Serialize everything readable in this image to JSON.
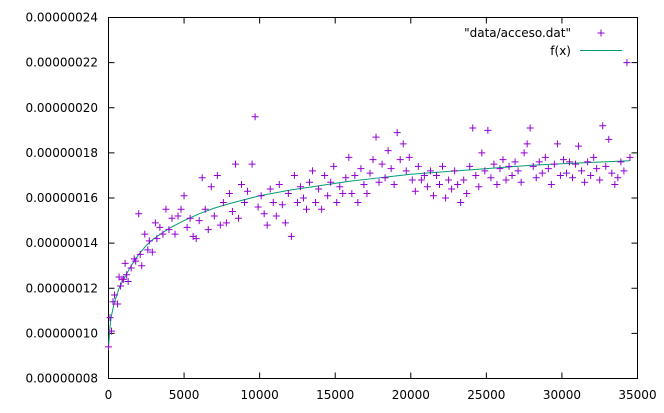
{
  "chart_data": {
    "type": "scatter",
    "title": "",
    "xlabel": "",
    "ylabel": "",
    "xlim": [
      0,
      35000
    ],
    "ylim": [
      8e-08,
      2.4e-07
    ],
    "xticks": [
      0,
      5000,
      10000,
      15000,
      20000,
      25000,
      30000,
      35000
    ],
    "xtick_labels": [
      "0",
      "5000",
      "10000",
      "15000",
      "20000",
      "25000",
      "30000",
      "35000"
    ],
    "yticks": [
      8e-08,
      1e-07,
      1.2e-07,
      1.4e-07,
      1.6e-07,
      1.8e-07,
      2e-07,
      2.2e-07,
      2.4e-07
    ],
    "ytick_labels": [
      "0.00000008",
      "0.00000010",
      "0.00000012",
      "0.00000014",
      "0.00000016",
      "0.00000018",
      "0.00000020",
      "0.00000022",
      "0.00000024"
    ],
    "legend_position": "top-right",
    "grid": false,
    "series": [
      {
        "name": "\"data/acceso.dat\"",
        "kind": "points",
        "marker": "+",
        "color": "#9400d3",
        "points": [
          [
            0,
            9.4e-08
          ],
          [
            100,
            1.07e-07
          ],
          [
            200,
            1.01e-07
          ],
          [
            300,
            1.14e-07
          ],
          [
            400,
            1.17e-07
          ],
          [
            600,
            1.13e-07
          ],
          [
            700,
            1.25e-07
          ],
          [
            800,
            1.21e-07
          ],
          [
            900,
            1.24e-07
          ],
          [
            1000,
            1.24e-07
          ],
          [
            1100,
            1.31e-07
          ],
          [
            1200,
            1.26e-07
          ],
          [
            1300,
            1.23e-07
          ],
          [
            1500,
            1.29e-07
          ],
          [
            1700,
            1.33e-07
          ],
          [
            1800,
            1.32e-07
          ],
          [
            2000,
            1.53e-07
          ],
          [
            2100,
            1.35e-07
          ],
          [
            2200,
            1.3e-07
          ],
          [
            2400,
            1.44e-07
          ],
          [
            2600,
            1.37e-07
          ],
          [
            2700,
            1.41e-07
          ],
          [
            2900,
            1.36e-07
          ],
          [
            3100,
            1.49e-07
          ],
          [
            3200,
            1.42e-07
          ],
          [
            3400,
            1.47e-07
          ],
          [
            3600,
            1.44e-07
          ],
          [
            3800,
            1.55e-07
          ],
          [
            4000,
            1.46e-07
          ],
          [
            4200,
            1.51e-07
          ],
          [
            4400,
            1.44e-07
          ],
          [
            4600,
            1.52e-07
          ],
          [
            4800,
            1.55e-07
          ],
          [
            5000,
            1.61e-07
          ],
          [
            5200,
            1.47e-07
          ],
          [
            5400,
            1.51e-07
          ],
          [
            5600,
            1.43e-07
          ],
          [
            5800,
            1.42e-07
          ],
          [
            6000,
            1.5e-07
          ],
          [
            6200,
            1.69e-07
          ],
          [
            6400,
            1.55e-07
          ],
          [
            6600,
            1.46e-07
          ],
          [
            6800,
            1.65e-07
          ],
          [
            7000,
            1.52e-07
          ],
          [
            7200,
            1.7e-07
          ],
          [
            7400,
            1.48e-07
          ],
          [
            7600,
            1.58e-07
          ],
          [
            7800,
            1.49e-07
          ],
          [
            8000,
            1.62e-07
          ],
          [
            8200,
            1.54e-07
          ],
          [
            8400,
            1.75e-07
          ],
          [
            8600,
            1.51e-07
          ],
          [
            8800,
            1.66e-07
          ],
          [
            9000,
            1.58e-07
          ],
          [
            9200,
            1.63e-07
          ],
          [
            9500,
            1.75e-07
          ],
          [
            9700,
            1.96e-07
          ],
          [
            9900,
            1.56e-07
          ],
          [
            10100,
            1.61e-07
          ],
          [
            10300,
            1.53e-07
          ],
          [
            10500,
            1.48e-07
          ],
          [
            10700,
            1.64e-07
          ],
          [
            10900,
            1.58e-07
          ],
          [
            11100,
            1.52e-07
          ],
          [
            11300,
            1.66e-07
          ],
          [
            11500,
            1.57e-07
          ],
          [
            11700,
            1.49e-07
          ],
          [
            11900,
            1.62e-07
          ],
          [
            12100,
            1.43e-07
          ],
          [
            12300,
            1.7e-07
          ],
          [
            12500,
            1.58e-07
          ],
          [
            12700,
            1.65e-07
          ],
          [
            12900,
            1.6e-07
          ],
          [
            13100,
            1.55e-07
          ],
          [
            13300,
            1.67e-07
          ],
          [
            13500,
            1.72e-07
          ],
          [
            13700,
            1.58e-07
          ],
          [
            13900,
            1.64e-07
          ],
          [
            14100,
            1.55e-07
          ],
          [
            14300,
            1.7e-07
          ],
          [
            14500,
            1.61e-07
          ],
          [
            14700,
            1.67e-07
          ],
          [
            14900,
            1.74e-07
          ],
          [
            15100,
            1.58e-07
          ],
          [
            15300,
            1.65e-07
          ],
          [
            15500,
            1.62e-07
          ],
          [
            15700,
            1.69e-07
          ],
          [
            15900,
            1.78e-07
          ],
          [
            16100,
            1.62e-07
          ],
          [
            16300,
            1.7e-07
          ],
          [
            16500,
            1.58e-07
          ],
          [
            16700,
            1.73e-07
          ],
          [
            16900,
            1.66e-07
          ],
          [
            17100,
            1.62e-07
          ],
          [
            17300,
            1.71e-07
          ],
          [
            17500,
            1.77e-07
          ],
          [
            17700,
            1.87e-07
          ],
          [
            17900,
            1.67e-07
          ],
          [
            18100,
            1.75e-07
          ],
          [
            18300,
            1.69e-07
          ],
          [
            18500,
            1.81e-07
          ],
          [
            18700,
            1.73e-07
          ],
          [
            18900,
            1.66e-07
          ],
          [
            19100,
            1.89e-07
          ],
          [
            19300,
            1.77e-07
          ],
          [
            19500,
            1.84e-07
          ],
          [
            19700,
            1.72e-07
          ],
          [
            19900,
            1.78e-07
          ],
          [
            20100,
            1.68e-07
          ],
          [
            20300,
            1.63e-07
          ],
          [
            20500,
            1.74e-07
          ],
          [
            20700,
            1.68e-07
          ],
          [
            20900,
            1.7e-07
          ],
          [
            21100,
            1.65e-07
          ],
          [
            21300,
            1.72e-07
          ],
          [
            21500,
            1.61e-07
          ],
          [
            21700,
            1.7e-07
          ],
          [
            21900,
            1.66e-07
          ],
          [
            22100,
            1.74e-07
          ],
          [
            22300,
            1.6e-07
          ],
          [
            22500,
            1.68e-07
          ],
          [
            22700,
            1.64e-07
          ],
          [
            22900,
            1.72e-07
          ],
          [
            23100,
            1.66e-07
          ],
          [
            23300,
            1.58e-07
          ],
          [
            23500,
            1.68e-07
          ],
          [
            23700,
            1.62e-07
          ],
          [
            23900,
            1.74e-07
          ],
          [
            24100,
            1.91e-07
          ],
          [
            24300,
            1.7e-07
          ],
          [
            24500,
            1.65e-07
          ],
          [
            24700,
            1.8e-07
          ],
          [
            24900,
            1.72e-07
          ],
          [
            25100,
            1.9e-07
          ],
          [
            25300,
            1.69e-07
          ],
          [
            25500,
            1.75e-07
          ],
          [
            25700,
            1.66e-07
          ],
          [
            25900,
            1.73e-07
          ],
          [
            26100,
            1.77e-07
          ],
          [
            26300,
            1.68e-07
          ],
          [
            26500,
            1.74e-07
          ],
          [
            26700,
            1.7e-07
          ],
          [
            26900,
            1.76e-07
          ],
          [
            27100,
            1.72e-07
          ],
          [
            27300,
            1.67e-07
          ],
          [
            27500,
            1.8e-07
          ],
          [
            27700,
            1.84e-07
          ],
          [
            27900,
            1.91e-07
          ],
          [
            28100,
            1.74e-07
          ],
          [
            28300,
            1.69e-07
          ],
          [
            28500,
            1.76e-07
          ],
          [
            28700,
            1.71e-07
          ],
          [
            28900,
            1.78e-07
          ],
          [
            29100,
            1.73e-07
          ],
          [
            29300,
            1.66e-07
          ],
          [
            29500,
            1.75e-07
          ],
          [
            29700,
            1.84e-07
          ],
          [
            29900,
            1.7e-07
          ],
          [
            30100,
            1.77e-07
          ],
          [
            30300,
            1.71e-07
          ],
          [
            30500,
            1.76e-07
          ],
          [
            30700,
            1.69e-07
          ],
          [
            30900,
            1.75e-07
          ],
          [
            31100,
            1.83e-07
          ],
          [
            31300,
            1.72e-07
          ],
          [
            31500,
            1.67e-07
          ],
          [
            31700,
            1.76e-07
          ],
          [
            31900,
            1.7e-07
          ],
          [
            32100,
            1.78e-07
          ],
          [
            32300,
            1.73e-07
          ],
          [
            32500,
            1.68e-07
          ],
          [
            32700,
            1.92e-07
          ],
          [
            32900,
            1.74e-07
          ],
          [
            33100,
            1.86e-07
          ],
          [
            33300,
            1.71e-07
          ],
          [
            33500,
            1.66e-07
          ],
          [
            33700,
            1.69e-07
          ],
          [
            33900,
            1.76e-07
          ],
          [
            34100,
            1.72e-07
          ],
          [
            34300,
            2.2e-07
          ],
          [
            34500,
            1.78e-07
          ]
        ]
      },
      {
        "name": "f(x)",
        "kind": "line",
        "color": "#009e73",
        "points": [
          [
            0,
            9.4e-08
          ],
          [
            100,
            1.03e-07
          ],
          [
            200,
            1.08e-07
          ],
          [
            400,
            1.14e-07
          ],
          [
            700,
            1.2e-07
          ],
          [
            1000,
            1.24e-07
          ],
          [
            1500,
            1.3e-07
          ],
          [
            2000,
            1.35e-07
          ],
          [
            2500,
            1.39e-07
          ],
          [
            3000,
            1.42e-07
          ],
          [
            4000,
            1.465e-07
          ],
          [
            5000,
            1.5e-07
          ],
          [
            6000,
            1.53e-07
          ],
          [
            7000,
            1.555e-07
          ],
          [
            8000,
            1.575e-07
          ],
          [
            10000,
            1.61e-07
          ],
          [
            12000,
            1.635e-07
          ],
          [
            14000,
            1.655e-07
          ],
          [
            16000,
            1.675e-07
          ],
          [
            18000,
            1.69e-07
          ],
          [
            20000,
            1.705e-07
          ],
          [
            22000,
            1.715e-07
          ],
          [
            24000,
            1.725e-07
          ],
          [
            26000,
            1.735e-07
          ],
          [
            28000,
            1.745e-07
          ],
          [
            30000,
            1.752e-07
          ],
          [
            32000,
            1.758e-07
          ],
          [
            34500,
            1.765e-07
          ]
        ]
      }
    ]
  }
}
